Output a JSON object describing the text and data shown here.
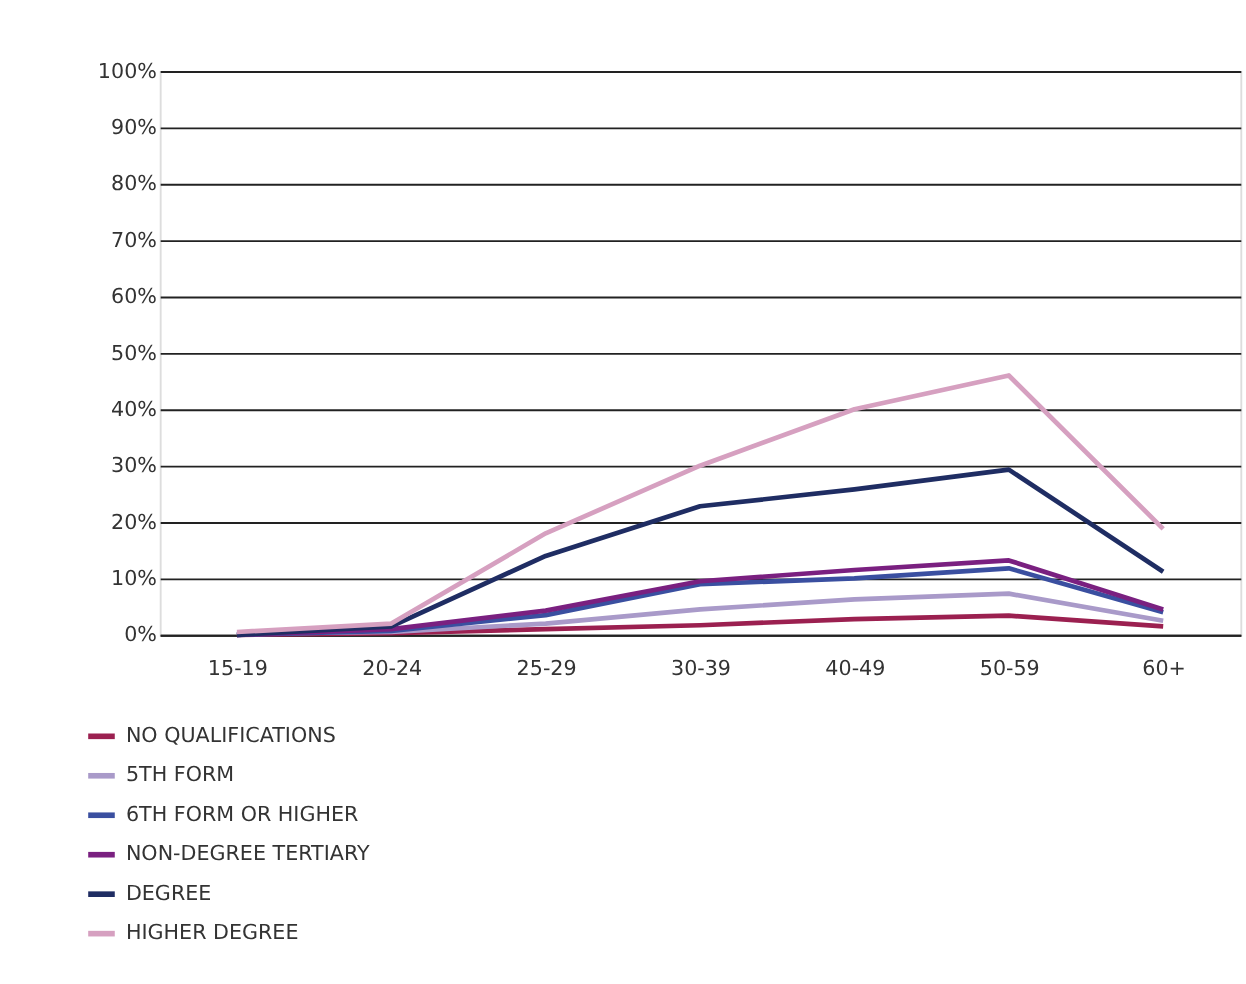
{
  "chart_data": {
    "type": "line",
    "categories": [
      "15-19",
      "20-24",
      "25-29",
      "30-39",
      "40-49",
      "50-59",
      "60+"
    ],
    "ylim": [
      0,
      100
    ],
    "yticks": [
      {
        "value": 0,
        "label": "0%"
      },
      {
        "value": 10,
        "label": "10%"
      },
      {
        "value": 20,
        "label": "20%"
      },
      {
        "value": 30,
        "label": "30%"
      },
      {
        "value": 40,
        "label": "40%"
      },
      {
        "value": 50,
        "label": "50%"
      },
      {
        "value": 60,
        "label": "60%"
      },
      {
        "value": 70,
        "label": "70%"
      },
      {
        "value": 80,
        "label": "80%"
      },
      {
        "value": 90,
        "label": "90%"
      },
      {
        "value": 100,
        "label": "100%"
      }
    ],
    "grid": "y",
    "legend": "bottom left",
    "marker": "none",
    "line_style": "solid",
    "series": [
      {
        "name": "NO QUALIFICATIONS",
        "color": "#9b2050",
        "values": [
          0,
          0.3,
          1,
          1.7,
          2.8,
          3.4,
          1.5
        ]
      },
      {
        "name": "5TH FORM",
        "color": "#a99ac9",
        "values": [
          0.2,
          0.5,
          2,
          4.5,
          6.3,
          7.3,
          2.5
        ]
      },
      {
        "name": "6TH FORM OR HIGHER",
        "color": "#3a4fa0",
        "values": [
          0,
          0.7,
          3.5,
          9,
          10,
          11.8,
          4
        ]
      },
      {
        "name": "NON-DEGREE TERTIARY",
        "color": "#7a2080",
        "values": [
          0,
          1,
          4.3,
          9.5,
          11.5,
          13.2,
          4.5
        ]
      },
      {
        "name": "DEGREE",
        "color": "#1f2d63",
        "values": [
          0,
          1.5,
          14,
          22.8,
          25.8,
          29.3,
          11.2
        ]
      },
      {
        "name": "HIGHER DEGREE",
        "color": "#d6a0c0",
        "values": [
          0.5,
          2,
          18,
          30,
          40,
          46,
          18.8
        ]
      }
    ]
  }
}
